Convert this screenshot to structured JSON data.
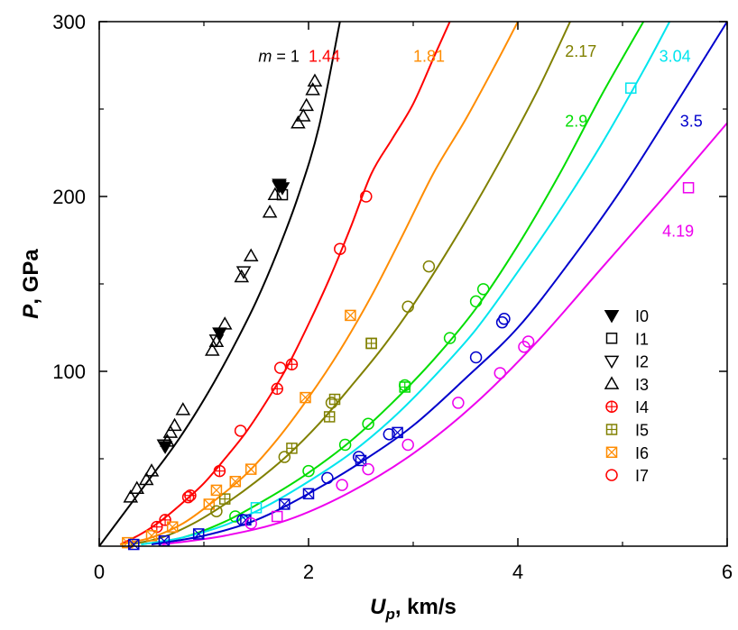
{
  "chart_data": {
    "type": "scatter",
    "xlabel_main": "U",
    "xlabel_sub": "p",
    "xlabel_rest": ", km/s",
    "ylabel_main": "P",
    "ylabel_rest": ", GPa",
    "xlim": [
      0,
      6
    ],
    "ylim": [
      0,
      300
    ],
    "xticks": [
      0,
      2,
      4,
      6
    ],
    "yticks": [
      100,
      200,
      300
    ],
    "grid": false,
    "legend_position": "right",
    "curves": [
      {
        "label": "m = 1",
        "label_prefix": "m",
        "label_value": " = 1",
        "color": "#000000",
        "x": [
          0,
          0.3,
          0.5,
          0.7,
          0.9,
          1.1,
          1.3,
          1.5,
          1.7,
          1.9,
          2.1,
          2.3
        ],
        "y": [
          0,
          24,
          40,
          56,
          74,
          94,
          116,
          140,
          168,
          200,
          240,
          300
        ]
      },
      {
        "label": "1.44",
        "color": "#ff0000",
        "x": [
          0.2,
          0.4,
          0.6,
          0.8,
          1.0,
          1.2,
          1.4,
          1.6,
          1.8,
          2.0,
          2.2,
          2.4,
          2.6,
          2.8,
          3.0,
          3.2,
          3.35
        ],
        "y": [
          1,
          7,
          15,
          25,
          36,
          50,
          65,
          83,
          103,
          127,
          153,
          182,
          213,
          233,
          253,
          280,
          300
        ]
      },
      {
        "label": "1.81",
        "color": "#ff8c00",
        "x": [
          0.2,
          0.5,
          0.8,
          1.1,
          1.4,
          1.7,
          2.0,
          2.3,
          2.6,
          2.9,
          3.2,
          3.5,
          3.8,
          4.0
        ],
        "y": [
          1,
          5,
          13,
          26,
          41,
          61,
          85,
          112,
          143,
          178,
          214,
          244,
          277,
          300
        ]
      },
      {
        "label": "2.17",
        "color": "#808000",
        "x": [
          0.3,
          0.6,
          0.9,
          1.2,
          1.5,
          1.8,
          2.1,
          2.4,
          2.7,
          3.0,
          3.3,
          3.6,
          3.9,
          4.2,
          4.5
        ],
        "y": [
          1,
          5,
          13,
          24,
          37,
          52,
          70,
          91,
          113,
          138,
          166,
          196,
          228,
          262,
          300
        ]
      },
      {
        "label": "2.9",
        "color": "#00dd00",
        "x": [
          0.4,
          0.8,
          1.2,
          1.6,
          2.0,
          2.4,
          2.8,
          3.2,
          3.6,
          4.0,
          4.4,
          4.8,
          5.2
        ],
        "y": [
          1,
          5,
          14,
          27,
          42,
          60,
          82,
          107,
          136,
          172,
          213,
          258,
          300
        ]
      },
      {
        "label": "3.04",
        "color": "#00e5ee",
        "x": [
          0.4,
          0.8,
          1.2,
          1.6,
          2.0,
          2.4,
          2.8,
          3.2,
          3.6,
          4.0,
          4.4,
          4.8,
          5.2,
          5.45
        ],
        "y": [
          1,
          5,
          12,
          23,
          37,
          53,
          73,
          97,
          124,
          157,
          192,
          230,
          272,
          300
        ]
      },
      {
        "label": "3.5",
        "color": "#0000cc",
        "x": [
          0.5,
          1.0,
          1.5,
          2.0,
          2.5,
          3.0,
          3.5,
          4.0,
          4.5,
          5.0,
          5.5,
          6.0
        ],
        "y": [
          1,
          6,
          15,
          30,
          48,
          69,
          96,
          125,
          163,
          205,
          252,
          300
        ]
      },
      {
        "label": "4.19",
        "color": "#ee00ee",
        "x": [
          0.6,
          1.2,
          1.8,
          2.4,
          3.0,
          3.6,
          4.2,
          4.8,
          5.4,
          6.0
        ],
        "y": [
          1,
          6,
          15,
          31,
          53,
          82,
          118,
          159,
          200,
          242
        ]
      }
    ],
    "curve_label_values": [
      {
        "curve": 0,
        "x": 1.52,
        "y": 277
      },
      {
        "curve": 1,
        "x": 2.0,
        "y": 277
      },
      {
        "curve": 2,
        "x": 3.0,
        "y": 277
      },
      {
        "curve": 3,
        "x": 4.45,
        "y": 280
      },
      {
        "curve": 4,
        "x": 4.45,
        "y": 240
      },
      {
        "curve": 5,
        "x": 5.35,
        "y": 277
      },
      {
        "curve": 6,
        "x": 5.55,
        "y": 240
      },
      {
        "curve": 7,
        "x": 5.38,
        "y": 177
      }
    ],
    "series": [
      {
        "name": "I0",
        "marker": "triangle-down-filled",
        "color": "#000000",
        "points": [
          [
            0.63,
            57
          ],
          [
            1.15,
            122
          ],
          [
            1.72,
            207
          ],
          [
            1.75,
            205
          ]
        ]
      },
      {
        "name": "I1",
        "marker": "square",
        "color": "#000000",
        "points": [
          [
            1.75,
            201
          ]
        ]
      },
      {
        "name": "I2",
        "marker": "triangle-down",
        "color": "#000000",
        "points": [
          [
            0.62,
            58
          ],
          [
            1.12,
            118
          ],
          [
            1.38,
            157
          ],
          [
            1.72,
            206
          ]
        ]
      },
      {
        "name": "I3",
        "marker": "triangle-up",
        "color": "#000000",
        "points": [
          [
            0.3,
            28
          ],
          [
            0.36,
            33
          ],
          [
            0.45,
            38
          ],
          [
            0.5,
            43
          ],
          [
            0.65,
            60
          ],
          [
            0.68,
            65
          ],
          [
            0.72,
            69
          ],
          [
            0.8,
            78
          ],
          [
            1.08,
            112
          ],
          [
            1.12,
            117
          ],
          [
            1.2,
            127
          ],
          [
            1.36,
            154
          ],
          [
            1.45,
            166
          ],
          [
            1.63,
            191
          ],
          [
            1.68,
            201
          ],
          [
            1.9,
            242
          ],
          [
            1.95,
            246
          ],
          [
            1.98,
            252
          ],
          [
            2.04,
            261
          ],
          [
            2.06,
            266
          ]
        ]
      },
      {
        "name": "I4",
        "marker": "circle-plus",
        "color": "#ff0000",
        "points": [
          [
            0.55,
            11
          ],
          [
            0.63,
            15
          ],
          [
            0.87,
            29
          ],
          [
            1.15,
            43
          ],
          [
            1.7,
            90
          ],
          [
            1.84,
            104
          ]
        ]
      },
      {
        "name": "I5",
        "marker": "square-plus",
        "color": "#808000",
        "points": [
          [
            1.2,
            27
          ],
          [
            1.84,
            56
          ],
          [
            2.2,
            74
          ],
          [
            2.25,
            84
          ],
          [
            2.6,
            116
          ]
        ]
      },
      {
        "name": "I6",
        "marker": "square-x",
        "color": "#ff8c00",
        "points": [
          [
            0.27,
            2
          ],
          [
            0.5,
            6
          ],
          [
            0.7,
            11
          ],
          [
            1.05,
            24
          ],
          [
            1.12,
            32
          ],
          [
            1.3,
            37
          ],
          [
            1.45,
            44
          ],
          [
            1.97,
            85
          ],
          [
            2.4,
            132
          ]
        ]
      },
      {
        "name": "I7",
        "marker": "circle",
        "color": "#ff0000",
        "points": [
          [
            0.85,
            28
          ],
          [
            1.35,
            66
          ],
          [
            1.73,
            102
          ],
          [
            2.3,
            170
          ],
          [
            2.55,
            200
          ]
        ]
      },
      {
        "name": "",
        "marker": "circle",
        "color": "#808000",
        "points": [
          [
            1.12,
            20
          ],
          [
            1.77,
            51
          ],
          [
            2.22,
            82
          ],
          [
            2.95,
            137
          ],
          [
            3.15,
            160
          ]
        ]
      },
      {
        "name": "",
        "marker": "square",
        "color": "#808000",
        "points": [
          [
            2.6,
            116
          ]
        ]
      },
      {
        "name": "",
        "marker": "circle",
        "color": "#00dd00",
        "points": [
          [
            1.3,
            17
          ],
          [
            2.0,
            43
          ],
          [
            2.35,
            58
          ],
          [
            2.57,
            70
          ],
          [
            2.92,
            92
          ],
          [
            3.35,
            119
          ],
          [
            3.6,
            140
          ],
          [
            3.67,
            147
          ]
        ]
      },
      {
        "name": "",
        "marker": "square-plus",
        "color": "#00dd00",
        "points": [
          [
            2.92,
            91
          ]
        ]
      },
      {
        "name": "",
        "marker": "square",
        "color": "#00e5ee",
        "points": [
          [
            1.5,
            22
          ],
          [
            5.08,
            262
          ]
        ]
      },
      {
        "name": "",
        "marker": "circle",
        "color": "#0000cc",
        "points": [
          [
            2.18,
            39
          ],
          [
            2.77,
            64
          ],
          [
            3.6,
            108
          ],
          [
            3.85,
            128
          ],
          [
            3.87,
            130
          ]
        ]
      },
      {
        "name": "",
        "marker": "square-x",
        "color": "#0000cc",
        "points": [
          [
            0.33,
            1
          ],
          [
            0.62,
            3
          ],
          [
            0.95,
            7
          ],
          [
            1.4,
            15
          ],
          [
            1.77,
            24
          ],
          [
            2.0,
            30
          ],
          [
            2.5,
            49
          ],
          [
            2.85,
            65
          ]
        ]
      },
      {
        "name": "",
        "marker": "circle",
        "color": "#0000cc",
        "points": [
          [
            1.37,
            15
          ],
          [
            2.48,
            51
          ]
        ]
      },
      {
        "name": "",
        "marker": "circle",
        "color": "#ee00ee",
        "points": [
          [
            1.45,
            13
          ],
          [
            2.32,
            35
          ],
          [
            2.57,
            44
          ],
          [
            2.95,
            58
          ],
          [
            3.43,
            82
          ],
          [
            3.83,
            99
          ],
          [
            4.06,
            114
          ],
          [
            4.1,
            117
          ]
        ]
      },
      {
        "name": "",
        "marker": "square",
        "color": "#ee00ee",
        "points": [
          [
            1.7,
            17
          ],
          [
            5.63,
            205
          ]
        ]
      }
    ]
  }
}
